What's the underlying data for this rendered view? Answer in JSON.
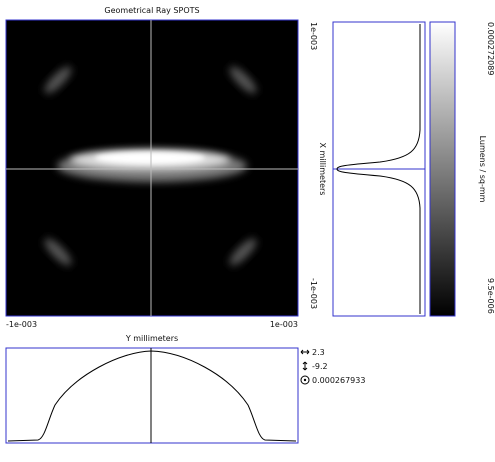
{
  "title": "Geometrical Ray SPOTS",
  "spot_axes": {
    "x_min": "-1e-003",
    "x_max": "1e-003",
    "y_max": "1e-003",
    "y_min": "-1e-003"
  },
  "profiles": {
    "vertical_label": "X millimeters",
    "horizontal_label": "Y millimeters"
  },
  "color_scale": {
    "max": "0.000272089",
    "min": "9.5e-006",
    "label": "Lumens / sq-mm"
  },
  "readouts": {
    "horizontal": "2.3",
    "vertical": "-9.2",
    "value": "0.000267933"
  }
}
